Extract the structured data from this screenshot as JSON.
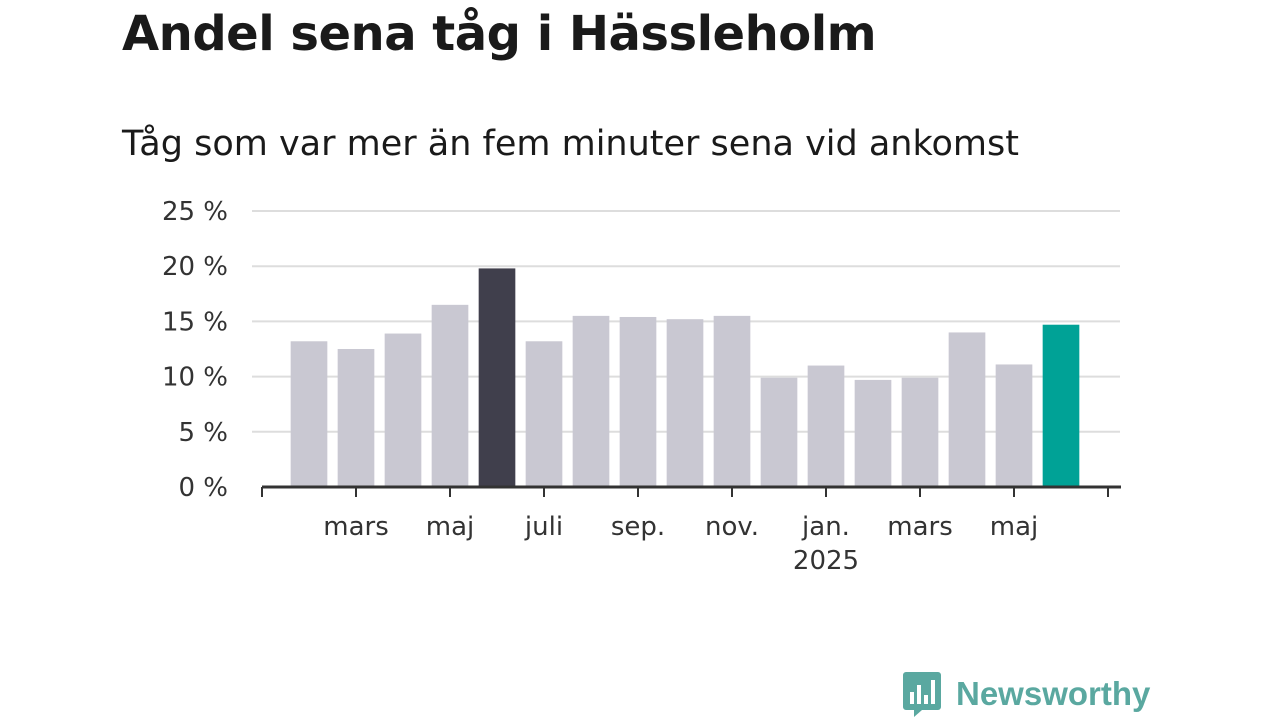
{
  "title": "Andel sena tåg i Hässleholm",
  "subtitle": "Tåg som var mer än fem minuter sena vid ankomst",
  "brand": {
    "name": "Newsworthy",
    "icon": "bar-chart-speech-bubble-icon",
    "color": "#5aa8a0"
  },
  "colors": {
    "default_bar": "#c9c8d2",
    "highlight_dark": "#403f4c",
    "highlight_teal": "#00a296",
    "axis": "#333333",
    "grid": "#dddddd"
  },
  "chart_data": {
    "type": "bar",
    "ylim": [
      0,
      25
    ],
    "y_ticks": [
      "0 %",
      "5 %",
      "10 %",
      "15 %",
      "20 %",
      "25 %"
    ],
    "y_tick_values": [
      0,
      5,
      10,
      15,
      20,
      25
    ],
    "x_tick_labels": [
      "mars",
      "maj",
      "juli",
      "sep.",
      "nov.",
      "jan.",
      "mars",
      "maj"
    ],
    "x_tick_label_year": "2025",
    "categories": [
      "2024-02",
      "2024-03",
      "2024-04",
      "2024-05",
      "2024-06",
      "2024-07",
      "2024-08",
      "2024-09",
      "2024-10",
      "2024-11",
      "2024-12",
      "2025-01",
      "2025-02",
      "2025-03",
      "2025-04",
      "2025-05",
      "2025-06"
    ],
    "values": [
      13.2,
      12.5,
      13.9,
      16.5,
      19.8,
      13.2,
      15.5,
      15.4,
      15.2,
      15.5,
      9.9,
      11.0,
      9.7,
      9.9,
      14.0,
      11.1,
      14.7
    ],
    "highlight": {
      "2024-06": "dark",
      "2025-06": "teal"
    },
    "grid": true
  }
}
